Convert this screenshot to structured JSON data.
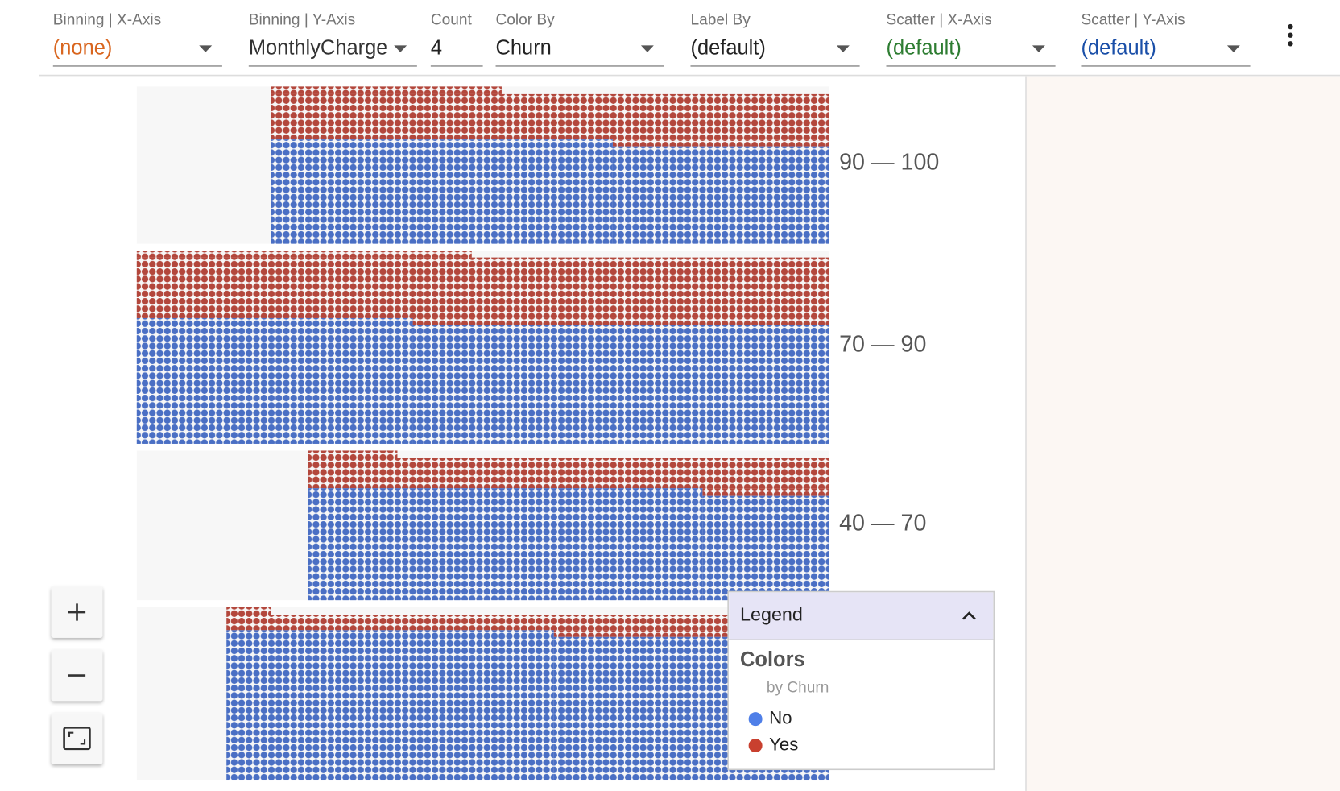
{
  "toolbar": {
    "fields": [
      {
        "label": "Binning | X-Axis",
        "value": "(none)",
        "color": "#d9661f",
        "dropdown": true
      },
      {
        "label": "Binning | Y-Axis",
        "value": "MonthlyCharge",
        "color": "#333333",
        "dropdown": true
      },
      {
        "label": "Count",
        "value": "4",
        "color": "#222222",
        "dropdown": false
      },
      {
        "label": "Color By",
        "value": "Churn",
        "color": "#222222",
        "dropdown": true
      },
      {
        "label": "Label By",
        "value": "(default)",
        "color": "#222222",
        "dropdown": true
      },
      {
        "label": "Scatter | X-Axis",
        "value": "(default)",
        "color": "#2e7d32",
        "dropdown": true
      },
      {
        "label": "Scatter | Y-Axis",
        "value": "(default)",
        "color": "#1a4fa8",
        "dropdown": true
      }
    ]
  },
  "bins": [
    {
      "label": "90 — 100"
    },
    {
      "label": "70 — 90"
    },
    {
      "label": "40 — 70"
    }
  ],
  "legend": {
    "title": "Legend",
    "section": "Colors",
    "subtitle": "by Churn",
    "items": [
      {
        "label": "No",
        "color": "#4f7fe8",
        "dot_color": "#4a6fc4"
      },
      {
        "label": "Yes",
        "color": "#c9402f",
        "dot_color": "#b3473c"
      }
    ]
  }
}
